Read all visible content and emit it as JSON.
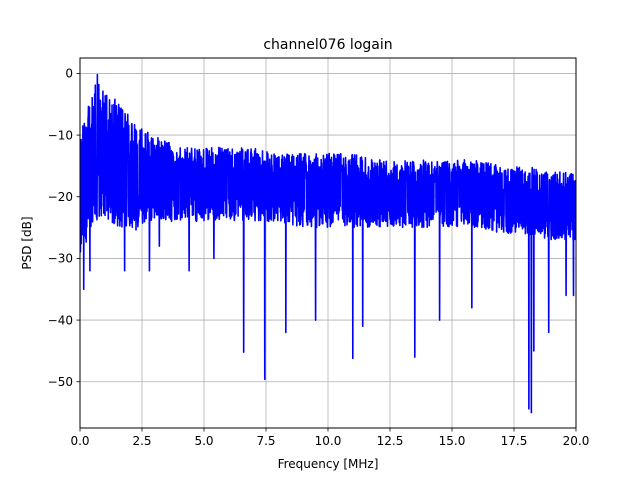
{
  "chart_data": {
    "type": "line",
    "title": "channel076 logain",
    "xlabel": "Frequency [MHz]",
    "ylabel": "PSD [dB]",
    "xlim": [
      0,
      20
    ],
    "ylim": [
      -57.5,
      2.5
    ],
    "xticks": [
      0,
      2.5,
      5,
      7.5,
      10,
      12.5,
      15,
      17.5,
      20
    ],
    "xtick_labels": [
      "0.0",
      "2.5",
      "5.0",
      "7.5",
      "10.0",
      "12.5",
      "15.0",
      "17.5",
      "20.0"
    ],
    "yticks": [
      0,
      -10,
      -20,
      -30,
      -40,
      -50
    ],
    "ytick_labels": [
      "0",
      "−10",
      "−20",
      "−30",
      "−40",
      "−50"
    ],
    "grid": true,
    "series_color": "#0000ff",
    "envelope": {
      "x": [
        0.0,
        0.3,
        0.6,
        0.9,
        1.2,
        1.5,
        1.8,
        2.1,
        2.5,
        3.0,
        3.5,
        4.0,
        5.0,
        6.0,
        7.0,
        8.0,
        9.0,
        10.0,
        11.0,
        12.0,
        13.0,
        14.0,
        15.0,
        16.0,
        17.0,
        18.0,
        19.0,
        20.0
      ],
      "upper": [
        -10,
        -6,
        -1,
        -2,
        -4,
        -4,
        -5,
        -8,
        -9,
        -10,
        -11,
        -12,
        -12,
        -12,
        -12,
        -13,
        -13,
        -13,
        -13,
        -14,
        -14,
        -14,
        -14,
        -14,
        -15,
        -15,
        -16,
        -16
      ],
      "lower": [
        -30,
        -27,
        -24,
        -23,
        -24,
        -25,
        -25,
        -26,
        -25,
        -24,
        -24,
        -24,
        -24,
        -24,
        -24,
        -24,
        -25,
        -25,
        -25,
        -25,
        -25,
        -25,
        -25,
        -25,
        -26,
        -26,
        -27,
        -27
      ]
    },
    "notable_dips": [
      {
        "x": 0.15,
        "y": -35
      },
      {
        "x": 0.4,
        "y": -32
      },
      {
        "x": 1.8,
        "y": -32
      },
      {
        "x": 2.8,
        "y": -32
      },
      {
        "x": 3.2,
        "y": -28
      },
      {
        "x": 4.4,
        "y": -32
      },
      {
        "x": 5.4,
        "y": -30
      },
      {
        "x": 6.6,
        "y": -45.2
      },
      {
        "x": 7.45,
        "y": -49.6
      },
      {
        "x": 8.3,
        "y": -42
      },
      {
        "x": 9.5,
        "y": -40
      },
      {
        "x": 11.0,
        "y": -46.2
      },
      {
        "x": 11.4,
        "y": -41
      },
      {
        "x": 13.5,
        "y": -46
      },
      {
        "x": 14.5,
        "y": -40
      },
      {
        "x": 15.8,
        "y": -38
      },
      {
        "x": 18.1,
        "y": -54.4
      },
      {
        "x": 18.2,
        "y": -55
      },
      {
        "x": 18.3,
        "y": -45
      },
      {
        "x": 18.9,
        "y": -42
      },
      {
        "x": 19.6,
        "y": -36
      },
      {
        "x": 19.9,
        "y": -36
      }
    ],
    "peak": {
      "x": 0.7,
      "y": -0.2
    }
  }
}
